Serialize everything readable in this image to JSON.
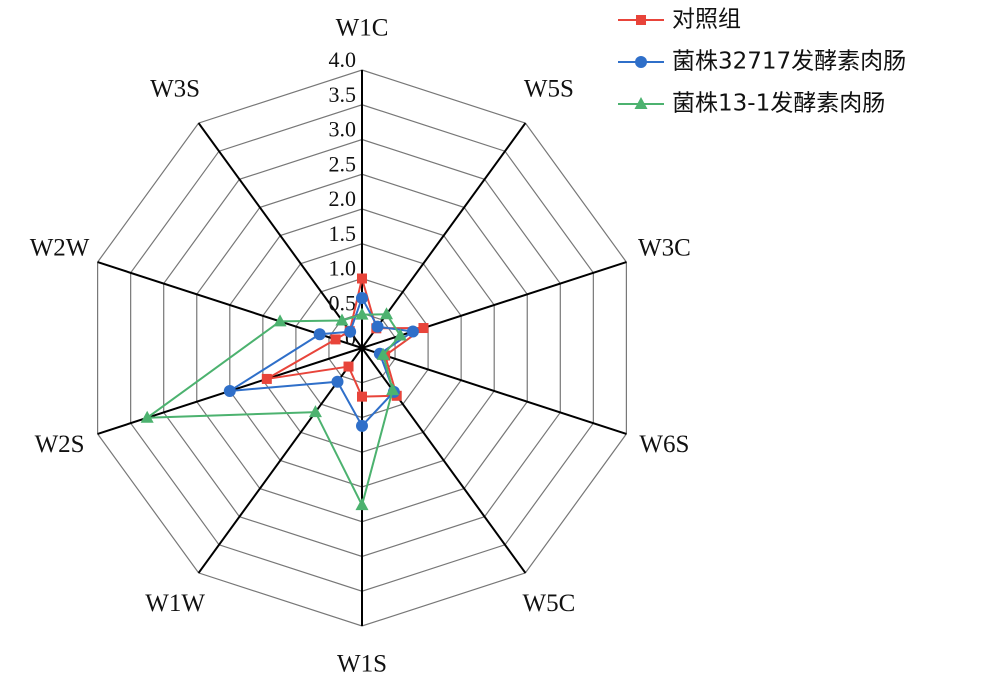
{
  "chart_data": {
    "type": "radar",
    "categories": [
      "W1C",
      "W5S",
      "W3C",
      "W6S",
      "W5C",
      "W1S",
      "W1W",
      "W2S",
      "W2W",
      "W3S"
    ],
    "ylim": [
      0,
      4
    ],
    "yticks": [
      0,
      0.5,
      {
        "value": 1,
        "label": "1.0"
      },
      1.5,
      {
        "value": 2,
        "label": "2.0"
      },
      2.5,
      {
        "value": 3,
        "label": "3.0"
      },
      3.5,
      {
        "value": 4,
        "label": "4.0"
      }
    ],
    "series": [
      {
        "name": "对照组",
        "color": "#e8443a",
        "marker": "square",
        "values": [
          1.0,
          0.35,
          0.93,
          0.35,
          0.85,
          0.7,
          0.33,
          1.44,
          0.4,
          0.3
        ]
      },
      {
        "name": "菌株32717发酵素肉肠",
        "color": "#2f6fc9",
        "marker": "circle",
        "values": [
          0.72,
          0.38,
          0.77,
          0.27,
          0.78,
          1.12,
          0.6,
          2.0,
          0.64,
          0.29
        ]
      },
      {
        "name": "菌株13-1发酵素肉肠",
        "color": "#4cb26f",
        "marker": "triangle",
        "values": [
          0.48,
          0.6,
          0.58,
          0.32,
          0.75,
          2.26,
          1.14,
          3.25,
          1.24,
          0.49
        ]
      }
    ],
    "legend": "upper right"
  }
}
